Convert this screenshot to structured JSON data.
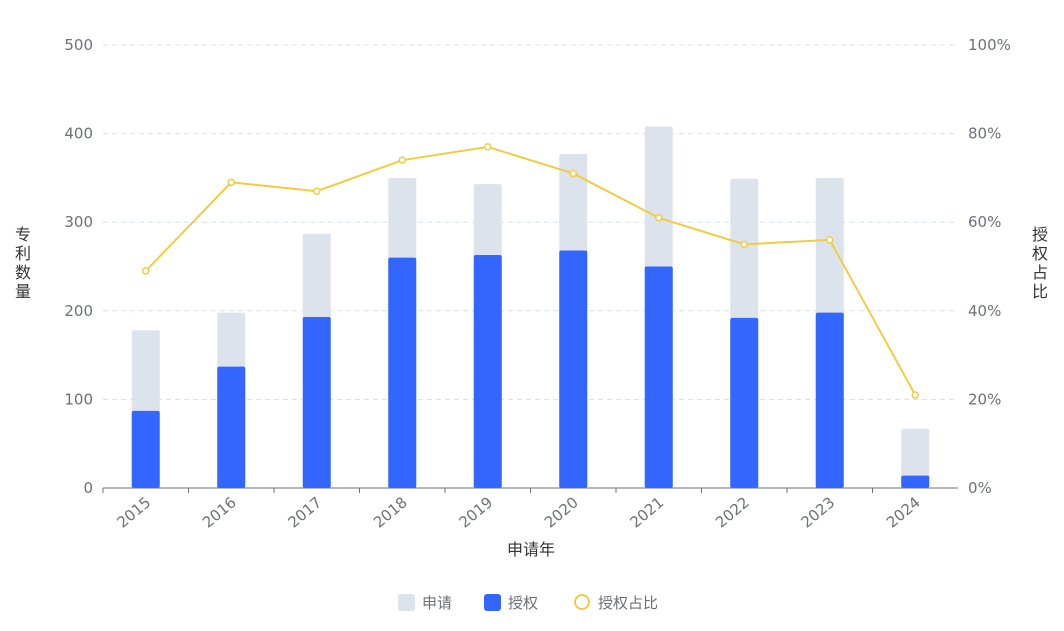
{
  "chart_data": {
    "type": "bar-line",
    "x_label": "申请年",
    "y_label": "专利数量",
    "y2_label": "授权占比",
    "categories": [
      "2015",
      "2016",
      "2017",
      "2018",
      "2019",
      "2020",
      "2021",
      "2022",
      "2023",
      "2024"
    ],
    "series": [
      {
        "name": "申请",
        "color": "#dde3ec",
        "type": "bar",
        "values": [
          178,
          198,
          287,
          350,
          343,
          377,
          408,
          349,
          350,
          67
        ]
      },
      {
        "name": "授权",
        "color": "#3366ff",
        "type": "bar",
        "values": [
          87,
          137,
          193,
          260,
          263,
          268,
          250,
          192,
          198,
          14
        ]
      },
      {
        "name": "授权占比",
        "color": "#f0cc45",
        "type": "line",
        "axis": "y2",
        "values": [
          49,
          69,
          67,
          74,
          77,
          71,
          61,
          55,
          56,
          21
        ]
      }
    ],
    "ylim": [
      0,
      500
    ],
    "yticks": [
      0,
      100,
      200,
      300,
      400,
      500
    ],
    "y2lim": [
      0,
      100
    ],
    "y2ticks": [
      {
        "value": 0,
        "label": "0%"
      },
      {
        "value": 20,
        "label": "20%"
      },
      {
        "value": 40,
        "label": "40%"
      },
      {
        "value": 60,
        "label": "60%"
      },
      {
        "value": 80,
        "label": "80%"
      },
      {
        "value": 100,
        "label": "100%"
      }
    ],
    "grid": true
  }
}
